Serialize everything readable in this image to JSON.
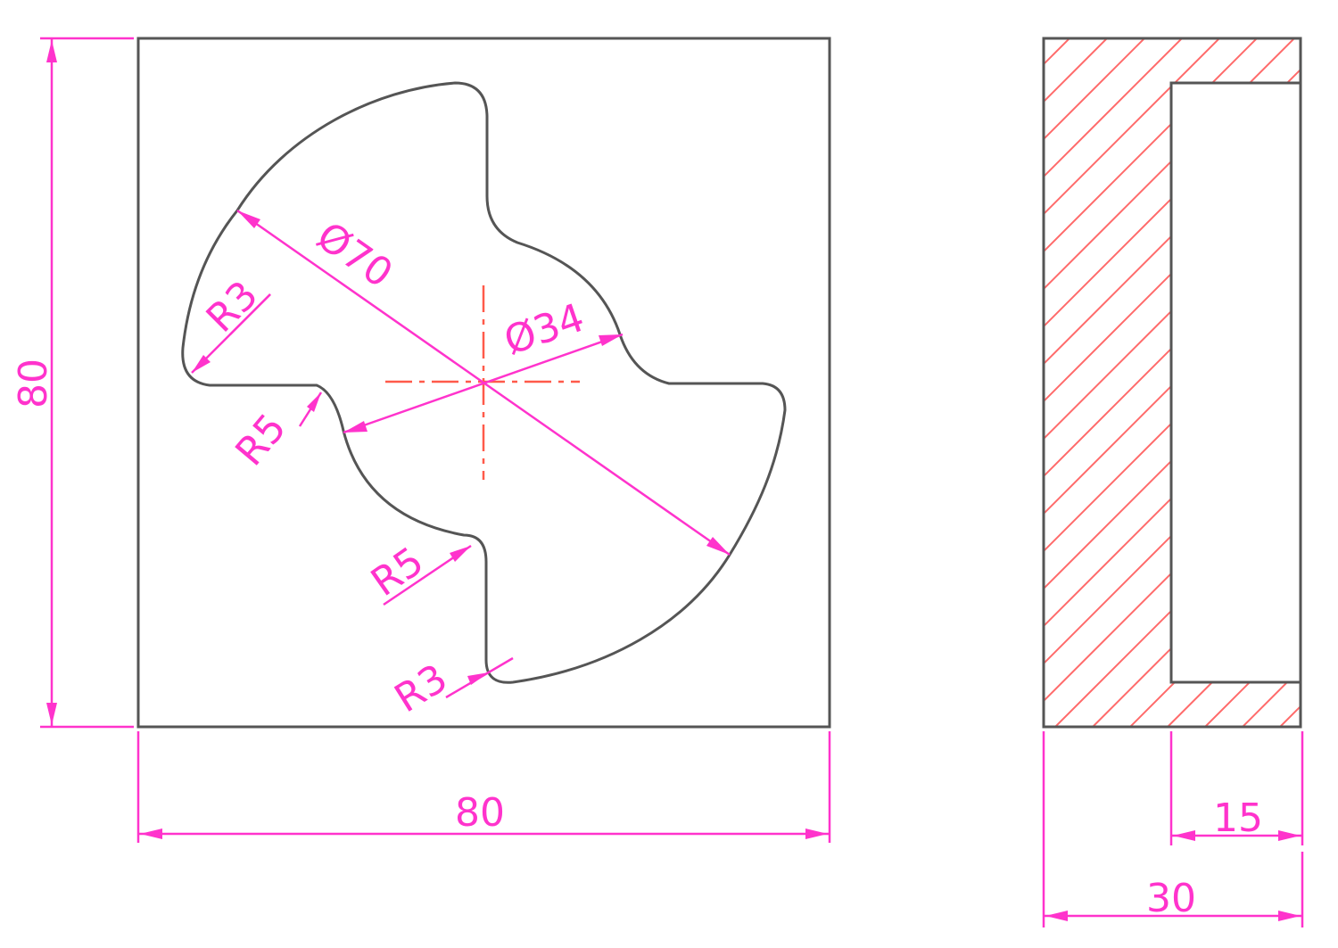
{
  "colors": {
    "outline": "#555555",
    "dimension": "#ff33cc",
    "centerline": "#ff5a4a",
    "hatch": "#ff6a6a",
    "background": "#ffffff"
  },
  "front_view": {
    "width_label": "80",
    "height_label": "80",
    "outer_diameter_label": "Ø70",
    "inner_diameter_label": "Ø34",
    "fillet_r3_upper_label": "R3",
    "fillet_r5_left_label": "R5",
    "fillet_r5_lower_label": "R5",
    "fillet_r3_lower_label": "R3"
  },
  "side_view": {
    "depth_label": "15",
    "thickness_label": "30"
  }
}
